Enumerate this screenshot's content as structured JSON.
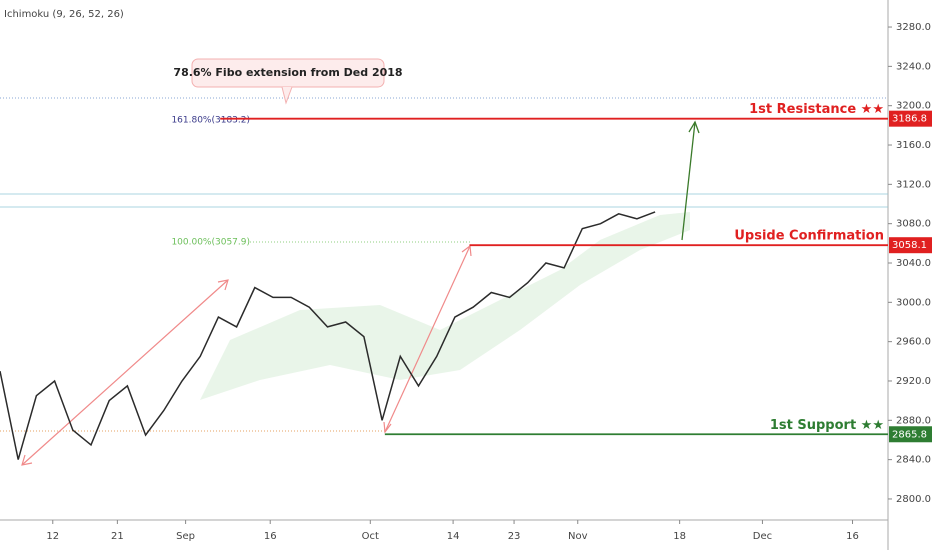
{
  "chart_data": {
    "type": "line",
    "title": "Ichimoku (9, 26, 52, 26)",
    "x": [
      0,
      2,
      4,
      6,
      8,
      10,
      12,
      14,
      16,
      18,
      20,
      22,
      24,
      26,
      28,
      30,
      32,
      34,
      36,
      38,
      40,
      42,
      44,
      46,
      48,
      50,
      52,
      54,
      56,
      58,
      60,
      62,
      64,
      66,
      68,
      70,
      72
    ],
    "series": [
      {
        "color": "#2b2b2b",
        "values": [
          2930,
          2840,
          2905,
          2920,
          2870,
          2855,
          2900,
          2915,
          2865,
          2890,
          2920,
          2945,
          2985,
          2975,
          3015,
          3005,
          3005,
          2995,
          2975,
          2980,
          2965,
          2880,
          2945,
          2915,
          2945,
          2985,
          2995,
          3010,
          3005,
          3020,
          3040,
          3035,
          3075,
          3080,
          3090,
          3085,
          3092
        ]
      }
    ],
    "xlim": [
      0,
      97.6
    ],
    "xticks": [
      {
        "value": 5.8,
        "label": "12"
      },
      {
        "value": 12.9,
        "label": "21"
      },
      {
        "value": 20.4,
        "label": "Sep"
      },
      {
        "value": 29.7,
        "label": "16"
      },
      {
        "value": 40.7,
        "label": "Oct"
      },
      {
        "value": 49.8,
        "label": "14"
      },
      {
        "value": 56.5,
        "label": "23"
      },
      {
        "value": 63.5,
        "label": "Nov"
      },
      {
        "value": 74.7,
        "label": "18"
      },
      {
        "value": 83.8,
        "label": "Dec"
      },
      {
        "value": 93.7,
        "label": "16"
      }
    ],
    "ylim": [
      2778.6,
      3307.5
    ],
    "yticks": [
      {
        "value": 2800,
        "label": "2800.0"
      },
      {
        "value": 2840,
        "label": "2840.0"
      },
      {
        "value": 2880,
        "label": "2880.0"
      },
      {
        "value": 2920,
        "label": "2920.0"
      },
      {
        "value": 2960,
        "label": "2960.0"
      },
      {
        "value": 3000,
        "label": "3000.0"
      },
      {
        "value": 3040,
        "label": "3040.0"
      },
      {
        "value": 3080,
        "label": "3080.0"
      },
      {
        "value": 3120,
        "label": "3120.0"
      },
      {
        "value": 3160,
        "label": "3160.0"
      },
      {
        "value": 3200,
        "label": "3200.0"
      },
      {
        "value": 3240,
        "label": "3240.0"
      },
      {
        "value": 3280,
        "label": "3280.0"
      }
    ],
    "levels": [
      {
        "label": "1st Resistance ★★",
        "value": 3186.8,
        "color": "#e02020",
        "start": 24.2
      },
      {
        "label": "Upside Confirmation",
        "value": 3058.1,
        "color": "#e02020",
        "start": 51.6
      },
      {
        "label": "1st Support ★★",
        "value": 2865.8,
        "color": "#2e7d32",
        "start": 42.3
      }
    ],
    "annotations": {
      "callout": "78.6% Fibo extension from Ded 2018",
      "fib_high": "161.80%(3183.2)",
      "fib_low": "100.00%(3057.9)"
    }
  }
}
